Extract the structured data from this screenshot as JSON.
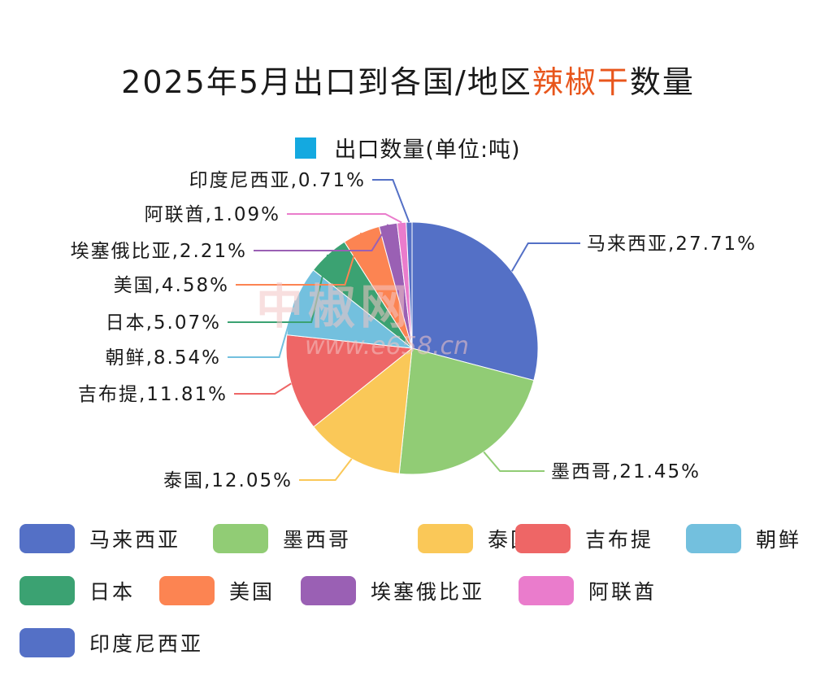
{
  "title": {
    "pre": "2025年5月出口到各国/地区",
    "highlight": "辣椒干",
    "post": "数量",
    "highlight_color": "#e8561c"
  },
  "legend_title": "出口数量(单位:吨)",
  "legend_title_color": "#14a9e0",
  "watermark": {
    "main": "中椒网",
    "url": "www.e658.cn"
  },
  "chart_data": {
    "type": "pie",
    "title": "2025年5月出口到各国/地区辣椒干数量",
    "series_name": "出口数量(单位:吨)",
    "slices": [
      {
        "label": "马来西亚",
        "percent": 27.71,
        "display": "马来西亚,27.71%",
        "color": "#5470c6"
      },
      {
        "label": "墨西哥",
        "percent": 21.45,
        "display": "墨西哥,21.45%",
        "color": "#91cc75"
      },
      {
        "label": "泰国",
        "percent": 12.05,
        "display": "泰国,12.05%",
        "color": "#fac858"
      },
      {
        "label": "吉布提",
        "percent": 11.81,
        "display": "吉布提,11.81%",
        "color": "#ee6666"
      },
      {
        "label": "朝鲜",
        "percent": 8.54,
        "display": "朝鲜,8.54%",
        "color": "#73c0de"
      },
      {
        "label": "日本",
        "percent": 5.07,
        "display": "日本,5.07%",
        "color": "#3ba272"
      },
      {
        "label": "美国",
        "percent": 4.58,
        "display": "美国,4.58%",
        "color": "#fc8452"
      },
      {
        "label": "埃塞俄比亚",
        "percent": 2.21,
        "display": "埃塞俄比亚,2.21%",
        "color": "#9a60b4"
      },
      {
        "label": "阿联酋",
        "percent": 1.09,
        "display": "阿联酋,1.09%",
        "color": "#ea7ccc"
      },
      {
        "label": "印度尼西亚",
        "percent": 0.71,
        "display": "印度尼西亚,0.71%",
        "color": "#5470c6"
      }
    ],
    "legend_position": "bottom"
  }
}
